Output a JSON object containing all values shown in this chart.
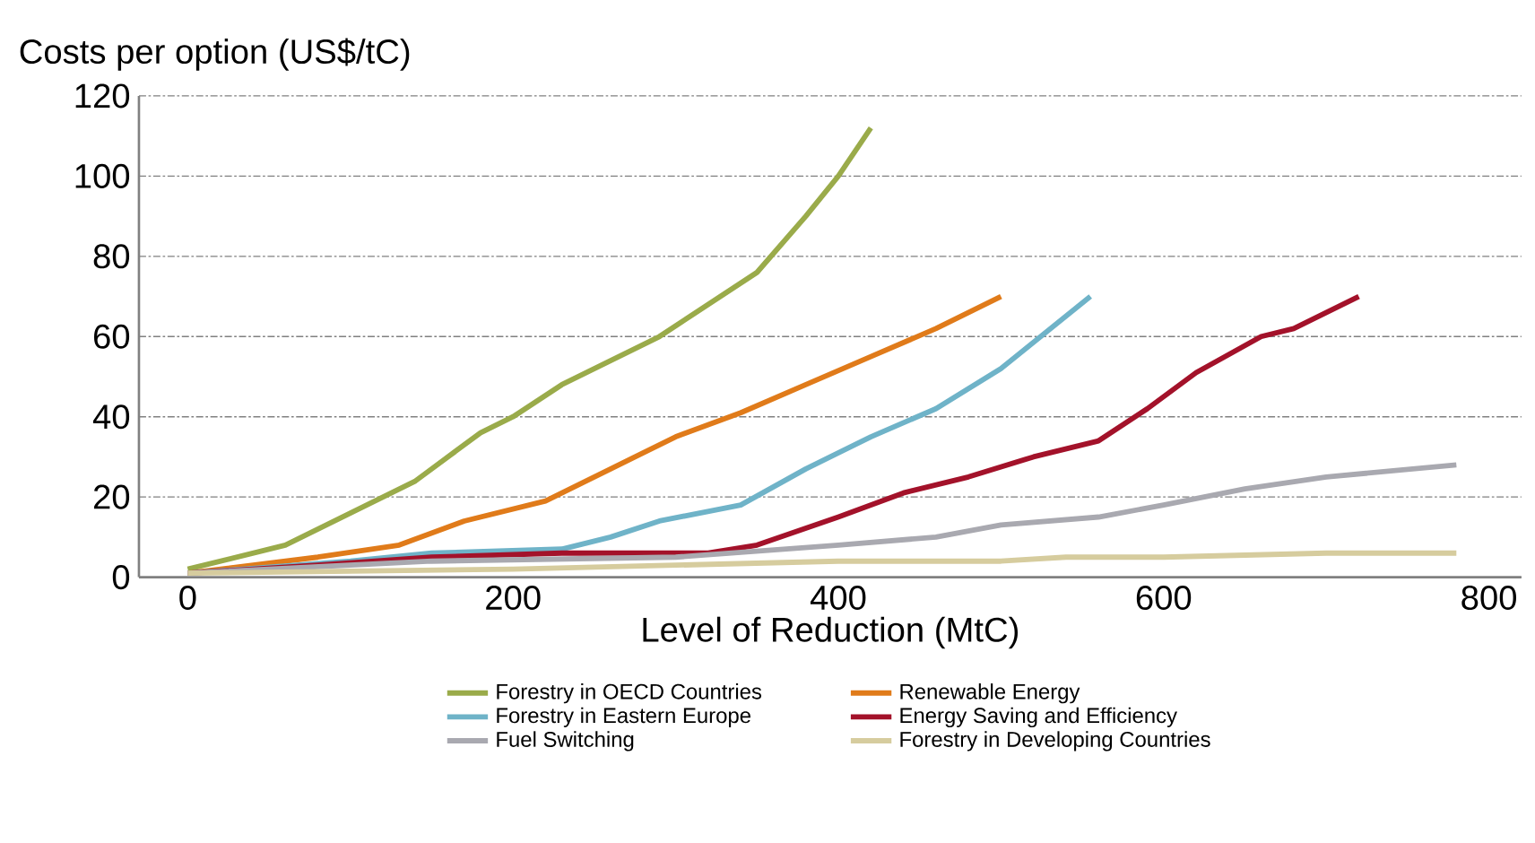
{
  "chart_data": {
    "type": "line",
    "xlabel": "Level of Reduction (MtC)",
    "ylabel": "Costs per option (US$/tC)",
    "xlim": [
      -30,
      820
    ],
    "ylim": [
      0,
      120
    ],
    "xticks": [
      0,
      200,
      400,
      600,
      800
    ],
    "yticks": [
      0,
      20,
      40,
      60,
      80,
      100,
      120
    ],
    "grid": "y",
    "legend": "bottom",
    "marker": "none",
    "line_style": "solid",
    "series": [
      {
        "name": "Forestry in OECD Countries",
        "color": "#9aab4a",
        "x": [
          0,
          60,
          100,
          140,
          180,
          200,
          230,
          260,
          290,
          320,
          350,
          380,
          400,
          420
        ],
        "values": [
          2,
          8,
          16,
          24,
          36,
          40,
          48,
          54,
          60,
          68,
          76,
          90,
          100,
          112
        ]
      },
      {
        "name": "Renewable Energy",
        "color": "#e07b1a",
        "x": [
          0,
          80,
          130,
          170,
          220,
          260,
          300,
          340,
          380,
          420,
          460,
          500
        ],
        "values": [
          1,
          5,
          8,
          14,
          19,
          27,
          35,
          41,
          48,
          55,
          62,
          70
        ]
      },
      {
        "name": "Forestry in Eastern Europe",
        "color": "#6fb3c8",
        "x": [
          0,
          100,
          150,
          230,
          260,
          290,
          340,
          380,
          420,
          460,
          500,
          555
        ],
        "values": [
          1,
          4,
          6,
          7,
          10,
          14,
          18,
          27,
          35,
          42,
          52,
          70
        ]
      },
      {
        "name": "Energy Saving and Efficiency",
        "color": "#a3122a",
        "x": [
          0,
          80,
          150,
          230,
          320,
          350,
          400,
          440,
          480,
          520,
          560,
          590,
          620,
          660,
          680,
          720
        ],
        "values": [
          1,
          3,
          5,
          6,
          6,
          8,
          15,
          21,
          25,
          30,
          34,
          42,
          51,
          60,
          62,
          70
        ]
      },
      {
        "name": "Fuel Switching",
        "color": "#a9a9b0",
        "x": [
          0,
          150,
          300,
          400,
          460,
          500,
          560,
          600,
          650,
          700,
          780
        ],
        "values": [
          1,
          4,
          5,
          8,
          10,
          13,
          15,
          18,
          22,
          25,
          28
        ]
      },
      {
        "name": "Forestry in Developing Countries",
        "color": "#d6cc9e",
        "x": [
          0,
          200,
          400,
          500,
          540,
          600,
          700,
          780
        ],
        "values": [
          1,
          2,
          4,
          4,
          5,
          5,
          6,
          6
        ]
      }
    ]
  }
}
